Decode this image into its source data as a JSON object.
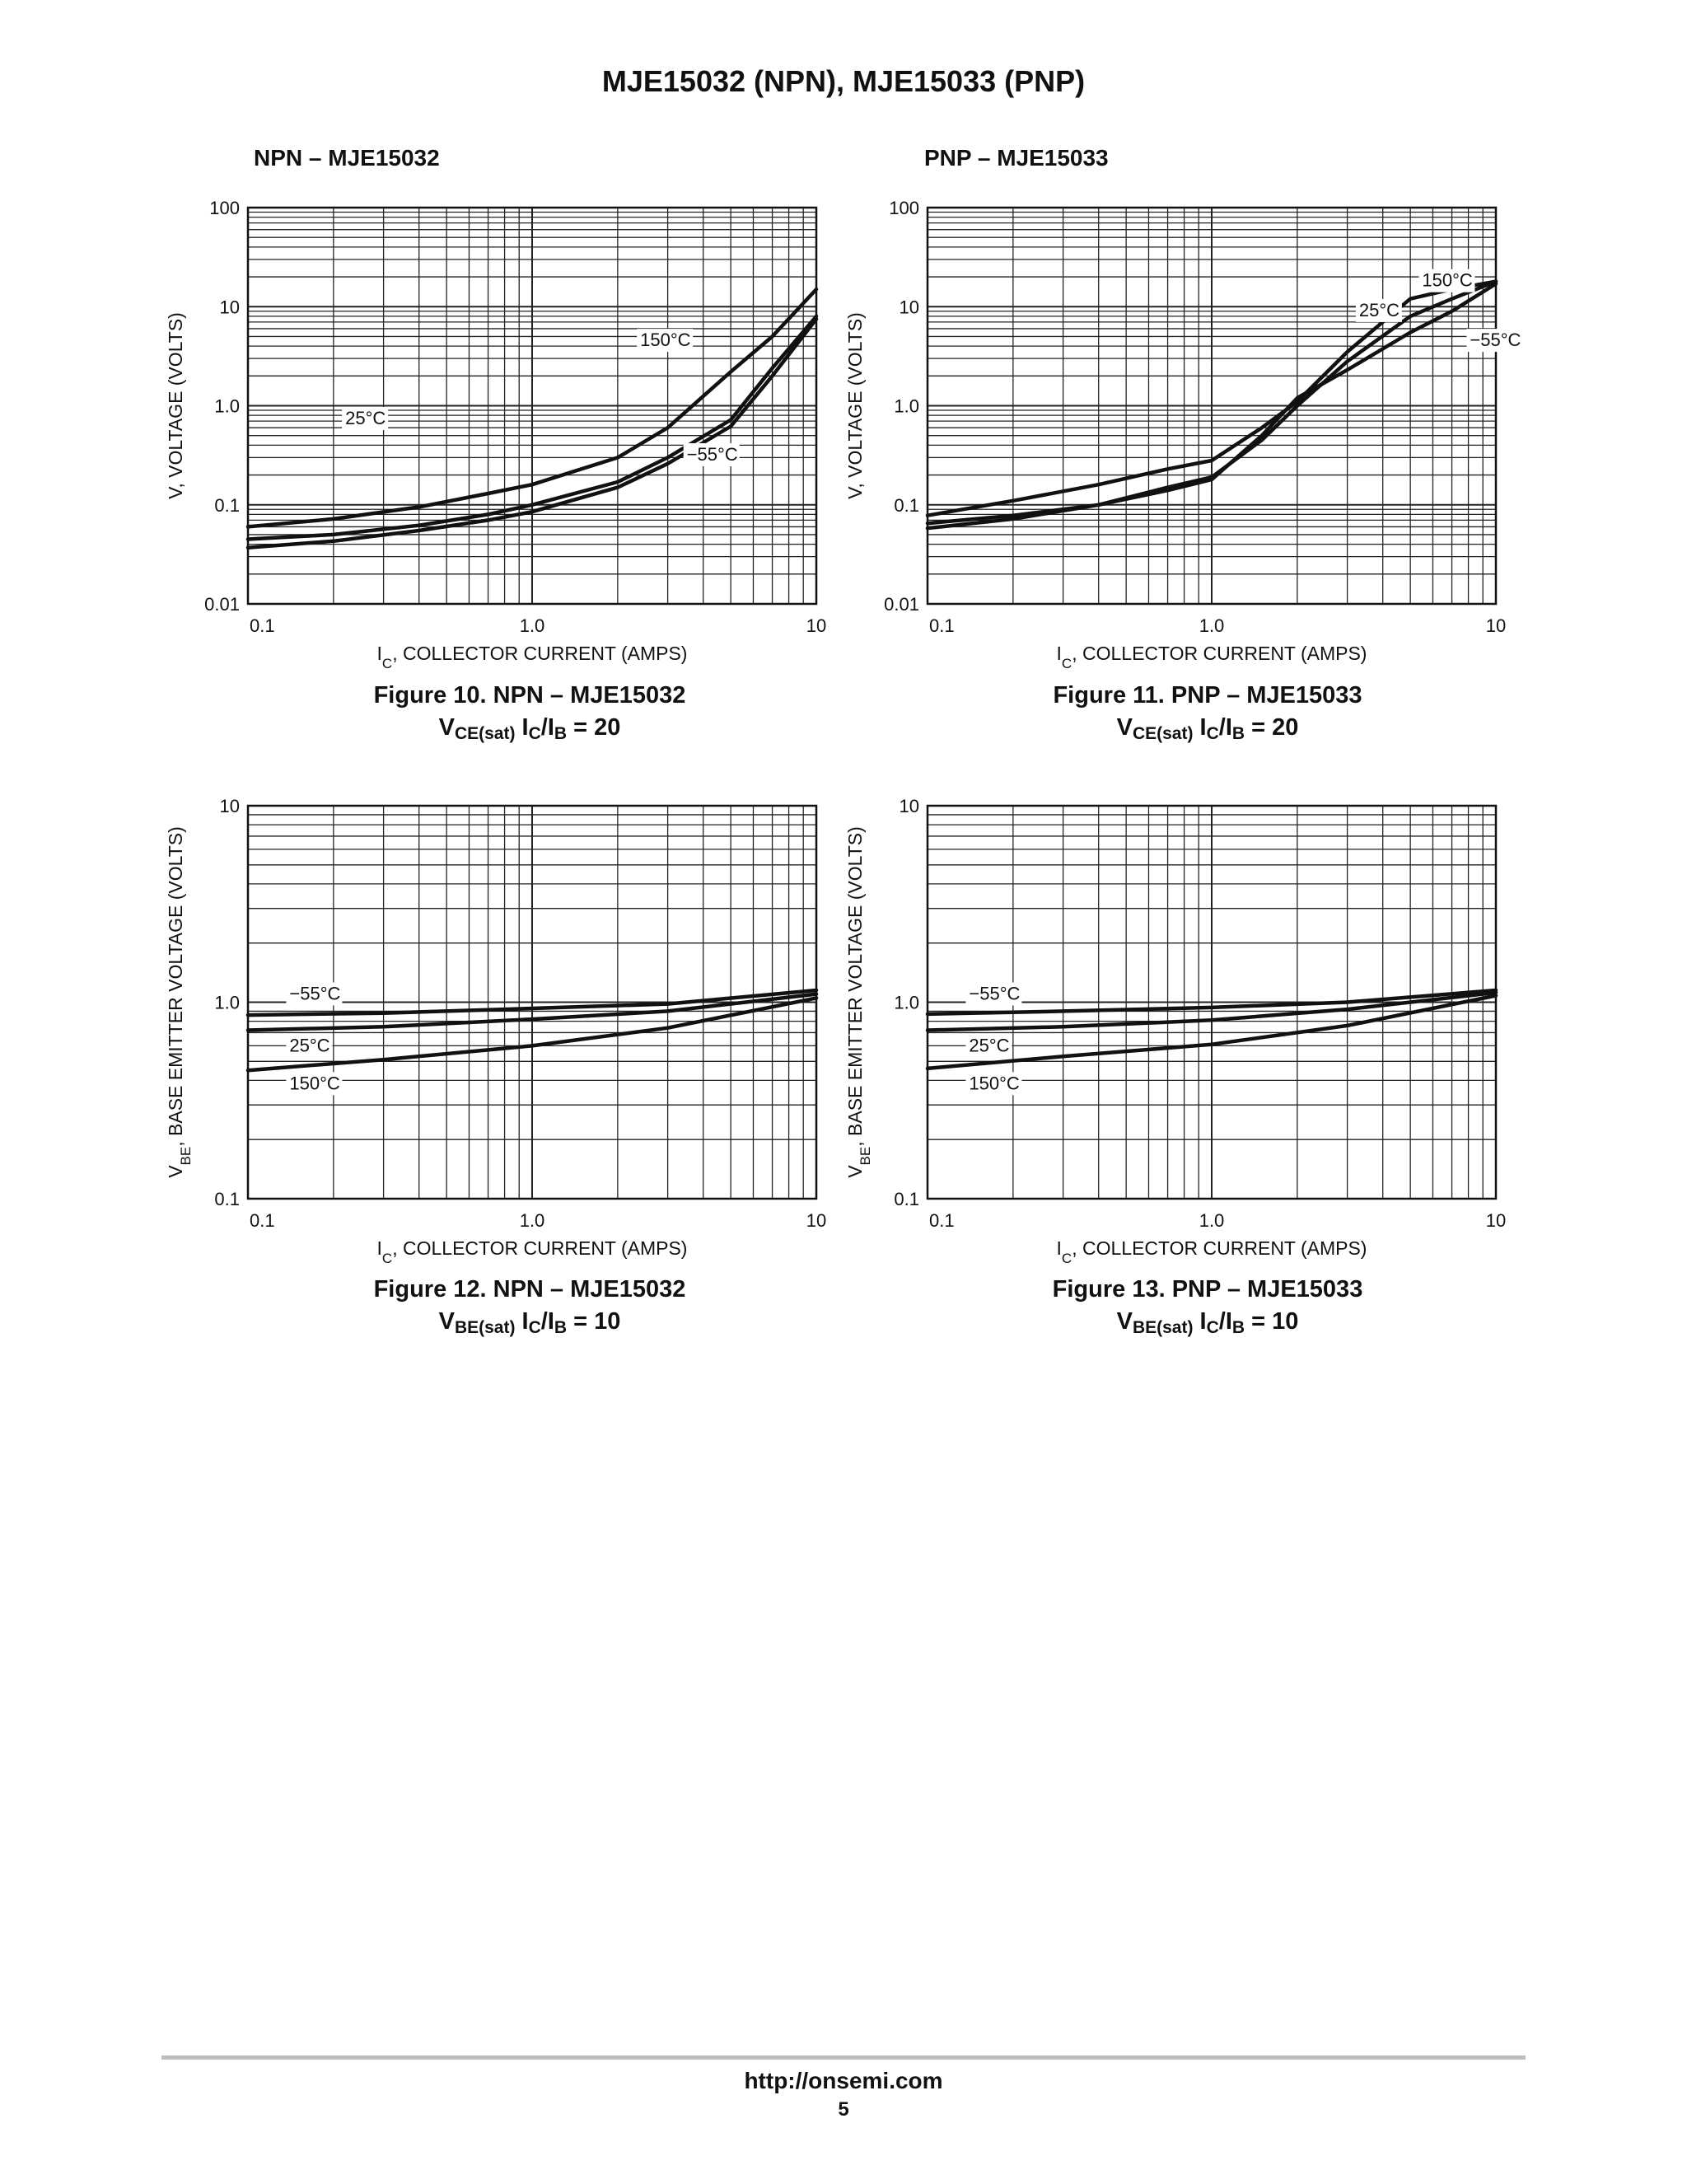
{
  "page_title": "MJE15032 (NPN), MJE15033 (PNP)",
  "sections": {
    "npn_label": "NPN – MJE15032",
    "pnp_label": "PNP – MJE15033"
  },
  "chart_data": [
    {
      "id": "fig10",
      "type": "line",
      "log_x": true,
      "log_y": true,
      "xlim": [
        0.1,
        10
      ],
      "ylim": [
        0.01,
        100
      ],
      "x_ticks": [
        "0.1",
        "1.0",
        "10"
      ],
      "y_ticks": [
        "0.01",
        "0.1",
        "1.0",
        "10",
        "100"
      ],
      "xlabel_main": "I",
      "xlabel_sub": "C",
      "xlabel_rest": ", COLLECTOR CURRENT (AMPS)",
      "ylabel_main": "V, VOLTAGE (VOLTS)",
      "ylabel_sub": "",
      "ylabel_rest": "",
      "grid": true,
      "caption_line1": "Figure 10. NPN – MJE15032",
      "caption_v": "V",
      "caption_v_sub": "CE(sat)",
      "caption_ic": " I",
      "caption_ic_sub": "C",
      "caption_ib": "/I",
      "caption_ib_sub": "B",
      "caption_ratio": " = 20",
      "series": [
        {
          "name": "150°C",
          "x": [
            0.1,
            0.2,
            0.4,
            0.7,
            1.0,
            2.0,
            3.0,
            5.0,
            7.0,
            10.0
          ],
          "y": [
            0.06,
            0.072,
            0.095,
            0.13,
            0.16,
            0.3,
            0.6,
            2.2,
            5.0,
            15.0
          ]
        },
        {
          "name": "25°C",
          "x": [
            0.1,
            0.2,
            0.4,
            0.7,
            1.0,
            2.0,
            3.0,
            5.0,
            7.0,
            10.0
          ],
          "y": [
            0.045,
            0.05,
            0.062,
            0.08,
            0.1,
            0.17,
            0.3,
            0.72,
            2.4,
            8.0
          ]
        },
        {
          "name": "−55°C",
          "x": [
            0.1,
            0.2,
            0.4,
            0.7,
            1.0,
            2.0,
            3.0,
            5.0,
            7.0,
            10.0
          ],
          "y": [
            0.037,
            0.043,
            0.055,
            0.07,
            0.085,
            0.15,
            0.26,
            0.62,
            2.0,
            7.5
          ]
        }
      ],
      "labels": [
        {
          "text": "150°C",
          "x": 2.4,
          "y": 4.0
        },
        {
          "text": "25°C",
          "x": 0.22,
          "y": 0.65
        },
        {
          "text": "−55°C",
          "x": 3.5,
          "y": 0.28
        }
      ]
    },
    {
      "id": "fig11",
      "type": "line",
      "log_x": true,
      "log_y": true,
      "xlim": [
        0.1,
        10
      ],
      "ylim": [
        0.01,
        100
      ],
      "x_ticks": [
        "0.1",
        "1.0",
        "10"
      ],
      "y_ticks": [
        "0.01",
        "0.1",
        "1.0",
        "10",
        "100"
      ],
      "xlabel_main": "I",
      "xlabel_sub": "C",
      "xlabel_rest": ", COLLECTOR CURRENT (AMPS)",
      "ylabel_main": "V, VOLTAGE (VOLTS)",
      "ylabel_sub": "",
      "ylabel_rest": "",
      "grid": true,
      "caption_line1": "Figure 11. PNP – MJE15033",
      "caption_v": "V",
      "caption_v_sub": "CE(sat)",
      "caption_ic": " I",
      "caption_ic_sub": "C",
      "caption_ib": "/I",
      "caption_ib_sub": "B",
      "caption_ratio": " = 20",
      "series": [
        {
          "name": "150°C",
          "x": [
            0.1,
            0.2,
            0.4,
            0.7,
            1.0,
            1.5,
            2.0,
            3.0,
            5.0,
            7.0,
            10.0
          ],
          "y": [
            0.078,
            0.11,
            0.16,
            0.23,
            0.28,
            0.6,
            1.1,
            3.5,
            12.0,
            15.0,
            18.0
          ]
        },
        {
          "name": "25°C",
          "x": [
            0.1,
            0.2,
            0.4,
            0.7,
            1.0,
            1.5,
            2.0,
            3.0,
            5.0,
            7.0,
            10.0
          ],
          "y": [
            0.058,
            0.072,
            0.1,
            0.15,
            0.19,
            0.45,
            1.0,
            2.8,
            8.0,
            12.0,
            18.0
          ]
        },
        {
          "name": "−55°C",
          "x": [
            0.1,
            0.2,
            0.4,
            0.7,
            1.0,
            1.5,
            2.0,
            3.0,
            5.0,
            7.0,
            10.0
          ],
          "y": [
            0.065,
            0.078,
            0.1,
            0.14,
            0.18,
            0.5,
            1.2,
            2.3,
            5.5,
            9.0,
            17.0
          ]
        }
      ],
      "labels": [
        {
          "text": "150°C",
          "x": 5.5,
          "y": 16.0
        },
        {
          "text": "25°C",
          "x": 3.3,
          "y": 8.0
        },
        {
          "text": "−55°C",
          "x": 8.1,
          "y": 4.0
        }
      ]
    },
    {
      "id": "fig12",
      "type": "line",
      "log_x": true,
      "log_y": true,
      "xlim": [
        0.1,
        10
      ],
      "ylim": [
        0.1,
        10
      ],
      "x_ticks": [
        "0.1",
        "1.0",
        "10"
      ],
      "y_ticks": [
        "0.1",
        "1.0",
        "10"
      ],
      "xlabel_main": "I",
      "xlabel_sub": "C",
      "xlabel_rest": ", COLLECTOR CURRENT (AMPS)",
      "ylabel_main": "V",
      "ylabel_sub": "BE",
      "ylabel_rest": ", BASE EMITTER VOLTAGE (VOLTS)",
      "grid": true,
      "caption_line1": "Figure 12. NPN – MJE15032",
      "caption_v": "V",
      "caption_v_sub": "BE(sat)",
      "caption_ic": " I",
      "caption_ic_sub": "C",
      "caption_ib": "/I",
      "caption_ib_sub": "B",
      "caption_ratio": " = 10",
      "series": [
        {
          "name": "−55°C",
          "x": [
            0.1,
            0.3,
            1.0,
            3.0,
            10.0
          ],
          "y": [
            0.86,
            0.88,
            0.93,
            0.98,
            1.15
          ]
        },
        {
          "name": "25°C",
          "x": [
            0.1,
            0.3,
            1.0,
            3.0,
            10.0
          ],
          "y": [
            0.72,
            0.75,
            0.82,
            0.9,
            1.1
          ]
        },
        {
          "name": "150°C",
          "x": [
            0.1,
            0.3,
            1.0,
            3.0,
            10.0
          ],
          "y": [
            0.45,
            0.51,
            0.6,
            0.74,
            1.05
          ]
        }
      ],
      "labels": [
        {
          "text": "−55°C",
          "x": 0.14,
          "y": 1.03
        },
        {
          "text": "25°C",
          "x": 0.14,
          "y": 0.56
        },
        {
          "text": "150°C",
          "x": 0.14,
          "y": 0.36
        }
      ]
    },
    {
      "id": "fig13",
      "type": "line",
      "log_x": true,
      "log_y": true,
      "xlim": [
        0.1,
        10
      ],
      "ylim": [
        0.1,
        10
      ],
      "x_ticks": [
        "0.1",
        "1.0",
        "10"
      ],
      "y_ticks": [
        "0.1",
        "1.0",
        "10"
      ],
      "xlabel_main": "I",
      "xlabel_sub": "C",
      "xlabel_rest": ", COLLECTOR CURRENT (AMPS)",
      "ylabel_main": "V",
      "ylabel_sub": "BE",
      "ylabel_rest": ", BASE EMITTER VOLTAGE (VOLTS)",
      "grid": true,
      "caption_line1": "Figure 13. PNP – MJE15033",
      "caption_v": "V",
      "caption_v_sub": "BE(sat)",
      "caption_ic": " I",
      "caption_ic_sub": "C",
      "caption_ib": "/I",
      "caption_ib_sub": "B",
      "caption_ratio": " = 10",
      "series": [
        {
          "name": "−55°C",
          "x": [
            0.1,
            0.3,
            1.0,
            3.0,
            10.0
          ],
          "y": [
            0.87,
            0.9,
            0.94,
            1.0,
            1.15
          ]
        },
        {
          "name": "25°C",
          "x": [
            0.1,
            0.3,
            1.0,
            3.0,
            10.0
          ],
          "y": [
            0.72,
            0.75,
            0.81,
            0.92,
            1.12
          ]
        },
        {
          "name": "150°C",
          "x": [
            0.1,
            0.3,
            1.0,
            3.0,
            10.0
          ],
          "y": [
            0.46,
            0.53,
            0.61,
            0.76,
            1.08
          ]
        }
      ],
      "labels": [
        {
          "text": "−55°C",
          "x": 0.14,
          "y": 1.03
        },
        {
          "text": "25°C",
          "x": 0.14,
          "y": 0.56
        },
        {
          "text": "150°C",
          "x": 0.14,
          "y": 0.36
        }
      ]
    }
  ],
  "footer": {
    "url": "http://onsemi.com",
    "page": "5"
  }
}
